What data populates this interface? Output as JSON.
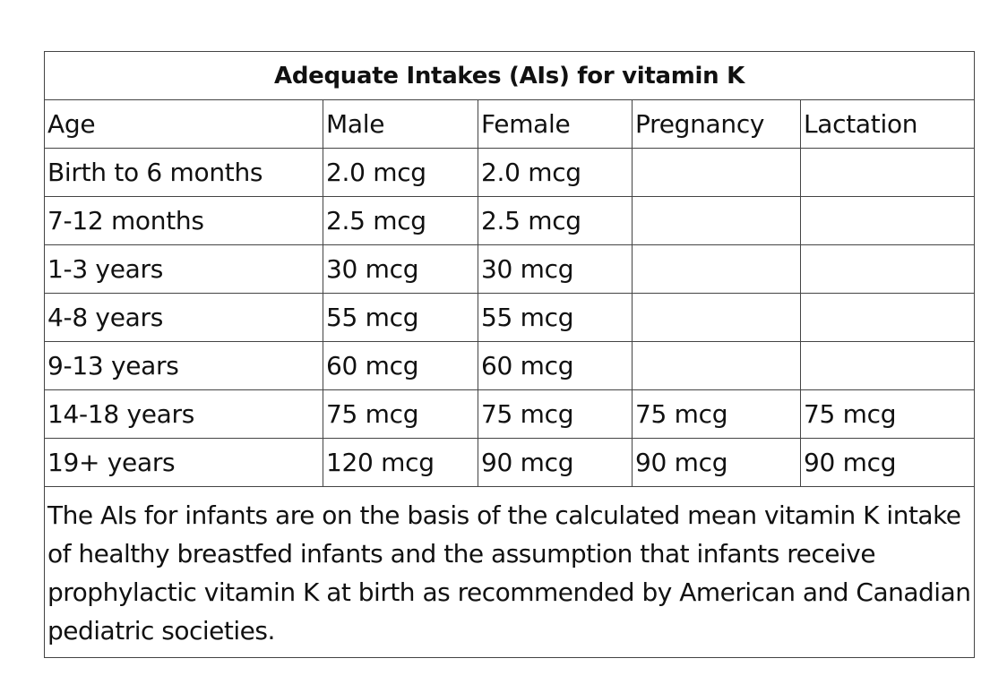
{
  "table": {
    "title": "Adequate Intakes (AIs) for vitamin K",
    "headers": [
      "Age",
      "Male",
      "Female",
      "Pregnancy",
      "Lactation"
    ],
    "rows": [
      [
        "Birth to 6 months",
        "2.0 mcg",
        "2.0 mcg",
        "",
        ""
      ],
      [
        "7-12 months",
        "2.5 mcg",
        "2.5 mcg",
        "",
        ""
      ],
      [
        "1-3 years",
        "30 mcg",
        "30 mcg",
        "",
        ""
      ],
      [
        "4-8 years",
        "55 mcg",
        "55 mcg",
        "",
        ""
      ],
      [
        "9-13 years",
        "60 mcg",
        "60 mcg",
        "",
        ""
      ],
      [
        "14-18 years",
        "75 mcg",
        "75 mcg",
        "75 mcg",
        "75 mcg"
      ],
      [
        "19+ years",
        "120 mcg",
        "90 mcg",
        "90 mcg",
        "90 mcg"
      ]
    ],
    "note": "The AIs for infants are on the basis of the calculated mean vitamin K intake of healthy breastfed infants and the assumption that infants receive prophylactic vitamin K at birth as recommended by American and Canadian pediatric societies."
  }
}
